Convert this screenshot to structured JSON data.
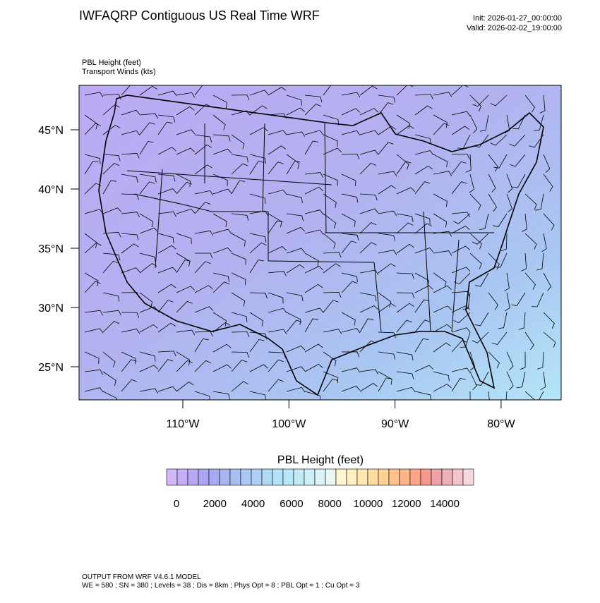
{
  "header": {
    "title": "IWFAQRP Contiguous US Real Time WRF",
    "init": "Init: 2026-01-27_00:00:00",
    "valid": "Valid: 2026-02-02_19:00:00"
  },
  "map": {
    "field": "PBL Height   (feet)",
    "overlay": "Transport Winds   (kts)",
    "lat_labels": [
      "45°N",
      "40°N",
      "35°N",
      "30°N",
      "25°N"
    ],
    "lon_labels": [
      "110°W",
      "100°W",
      "90°W",
      "80°W"
    ]
  },
  "colorbar": {
    "title": "PBL Height  (feet)",
    "labels": [
      "0",
      "2000",
      "4000",
      "6000",
      "8000",
      "10000",
      "12000",
      "14000"
    ],
    "colors": [
      "#d2b8f8",
      "#c4aef6",
      "#b7a8f4",
      "#aba6f2",
      "#a7aaf0",
      "#a8b4f0",
      "#aabdf2",
      "#acc7f3",
      "#afd0f5",
      "#b0d9f6",
      "#b4e2f8",
      "#b8e8f8",
      "#c2ebf7",
      "#cdeff7",
      "#dcf3f6",
      "#eaf6f4",
      "#fff5d0",
      "#ffefc0",
      "#ffe7b0",
      "#ffdda0",
      "#ffd094",
      "#ffc28a",
      "#ffb488",
      "#fca58a",
      "#f5998e",
      "#efa0a8",
      "#eeb0b8",
      "#f2c4cb",
      "#f7d8dc"
    ]
  },
  "footer": {
    "line1": "OUTPUT FROM WRF V4.6.1 MODEL",
    "line2": "WE = 580 ; SN = 380 ; Levels = 38 ; Dis = 8km ; Phys Opt = 8 ; PBL Opt = 1 ; Cu Opt = 3"
  }
}
